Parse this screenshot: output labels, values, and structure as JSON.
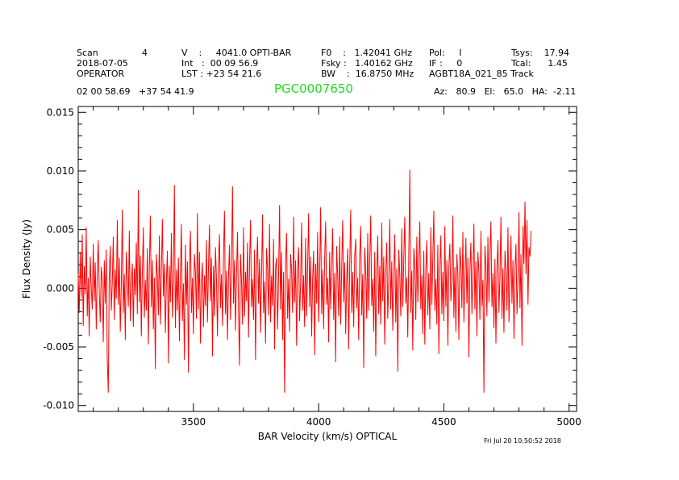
{
  "header": {
    "col1": {
      "scan_label": "Scan",
      "scan_value": "4",
      "date": "2018-07-05",
      "operator": "OPERATOR"
    },
    "col2": {
      "v": "V    :     4041.0 OPTI-BAR",
      "int": "Int   :  00 09 56.9",
      "lst": "LST : +23 54 21.6"
    },
    "col3": {
      "f0": "F0    :   1.42041 GHz",
      "fsky": "Fsky :   1.40162 GHz",
      "bw": "BW    :  16.8750 MHz"
    },
    "col4": {
      "pol": "Pol:     I",
      "if": "IF :     0",
      "proj": "AGBT18A_021_85 Track"
    },
    "col5": {
      "tsys": "Tsys:    17.94",
      "tcal": "Tcal:      1.45"
    },
    "coords": "02 00 58.69   +37 54 41.9",
    "azel": "Az:   80.9   El:   65.0   HA:  -2.11"
  },
  "title": "PGC0007650",
  "timestamp": "Fri Jul 20 10:50:52 2018",
  "colors": {
    "trace": "#ff0000",
    "title": "#22dd22"
  },
  "chart_data": {
    "type": "line",
    "title": "PGC0007650",
    "xlabel": "BAR Velocity (km/s) OPTICAL",
    "ylabel": "Flux Density (Jy)",
    "xlim": [
      3040,
      5030
    ],
    "ylim": [
      -0.0105,
      0.0155
    ],
    "xticks": [
      3500,
      4000,
      4500,
      5000
    ],
    "xtick_labels": [
      "3500",
      "4000",
      "4500",
      "5000"
    ],
    "yticks": [
      -0.01,
      -0.005,
      0.0,
      0.005,
      0.01,
      0.015
    ],
    "ytick_labels": [
      "-0.010",
      "-0.005",
      "0.000",
      "0.005",
      "0.010",
      "0.015"
    ],
    "grid": false,
    "series": [
      {
        "x_start": 3040,
        "x_step": 4,
        "y": [
          0.0012,
          -0.0021,
          0.0031,
          -0.0008,
          0.0046,
          -0.0032,
          0.0019,
          -0.0005,
          0.0052,
          -0.0024,
          0.0009,
          -0.0041,
          0.0027,
          0.0001,
          -0.0018,
          0.0038,
          -0.0011,
          0.0022,
          -0.0035,
          0.0014,
          0.0041,
          -0.0003,
          -0.0029,
          0.0018,
          0.0007,
          -0.0046,
          0.0024,
          -0.0013,
          0.0033,
          -0.0062,
          -0.0089,
          0.0011,
          0.0036,
          -0.0019,
          0.0005,
          0.0044,
          -0.0027,
          0.0016,
          -0.0009,
          0.0058,
          -0.0014,
          0.0026,
          -0.0037,
          0.0003,
          0.0067,
          -0.0021,
          0.0012,
          -0.0044,
          0.0031,
          0.0008,
          -0.0016,
          0.0049,
          -0.0028,
          0.0005,
          0.0021,
          -0.0033,
          0.0017,
          -0.0006,
          0.0039,
          -0.0022,
          0.0084,
          -0.0012,
          0.0028,
          -0.0041,
          0.0013,
          0.0052,
          -0.0025,
          0.0007,
          -0.0019,
          0.0034,
          -0.0048,
          0.0018,
          0.0062,
          -0.0016,
          0.0024,
          -0.0035,
          0.0009,
          -0.0069,
          0.0029,
          0.0011,
          -0.0023,
          0.0045,
          -0.0031,
          0.0015,
          0.0059,
          -0.0007,
          0.0021,
          -0.0038,
          0.0006,
          0.0032,
          -0.0064,
          0.0019,
          -0.0012,
          0.0047,
          -0.0025,
          0.0008,
          0.0088,
          -0.0034,
          0.0016,
          -0.0019,
          0.0026,
          -0.0045,
          0.0012,
          0.0055,
          -0.0028,
          0.0004,
          -0.0061,
          0.0037,
          -0.0014,
          0.0023,
          -0.0072,
          0.0018,
          0.0049,
          -0.0021,
          0.0009,
          -0.0039,
          0.0029,
          0.0014,
          -0.0026,
          0.0064,
          -0.0018,
          0.0031,
          -0.0047,
          0.0006,
          0.0022,
          -0.0033,
          0.0011,
          -0.0015,
          0.0041,
          -0.0029,
          0.0017,
          0.0054,
          -0.0011,
          0.0026,
          -0.0058,
          0.0019,
          -0.0024,
          0.0035,
          0.0008,
          -0.0041,
          0.0023,
          0.0046,
          -0.0017,
          0.0012,
          -0.0032,
          0.0028,
          0.0066,
          -0.0022,
          0.0015,
          -0.0044,
          0.0009,
          0.0037,
          -0.0027,
          0.0019,
          0.0087,
          -0.0013,
          0.0024,
          -0.0036,
          0.0011,
          0.0048,
          -0.0019,
          -0.0066,
          0.0029,
          0.0007,
          -0.0031,
          0.0052,
          -0.0024,
          0.0014,
          -0.0011,
          0.0039,
          -0.0042,
          0.0021,
          0.0058,
          -0.0016,
          0.0008,
          -0.0027,
          0.0033,
          -0.0061,
          0.0017,
          0.0044,
          -0.0013,
          0.0025,
          -0.0038,
          0.0012,
          0.0063,
          -0.0021,
          0.0006,
          -0.0047,
          0.0034,
          0.0016,
          -0.0023,
          0.0055,
          -0.0029,
          0.0011,
          -0.0015,
          0.0042,
          -0.0052,
          0.0018,
          0.0026,
          -0.0035,
          0.0009,
          0.0071,
          -0.0018,
          0.0031,
          -0.0044,
          0.0014,
          -0.0089,
          0.0022,
          0.0047,
          -0.0026,
          0.0008,
          -0.0037,
          0.0029,
          0.0015,
          -0.0021,
          0.0061,
          -0.0012,
          0.0024,
          -0.0049,
          0.0017,
          0.0035,
          -0.0028,
          0.0005,
          0.0056,
          -0.0019,
          0.0011,
          -0.0033,
          0.0043,
          -0.0024,
          0.0019,
          0.0064,
          -0.0016,
          0.0027,
          -0.0041,
          0.0008,
          0.0032,
          -0.0057,
          0.0021,
          -0.0013,
          0.0048,
          -0.0029,
          0.0012,
          0.0069,
          -0.0022,
          0.0016,
          -0.0035,
          0.0025,
          0.0057,
          -0.0014,
          0.0009,
          -0.0046,
          0.0031,
          -0.0018,
          0.0019,
          0.0051,
          -0.0027,
          0.0013,
          -0.0063,
          0.0036,
          0.0011,
          -0.0024,
          0.0044,
          -0.0031,
          0.0017,
          0.0058,
          -0.0012,
          0.0022,
          -0.0039,
          0.0006,
          0.0034,
          -0.0052,
          0.0018,
          0.0067,
          -0.0021,
          0.0014,
          -0.0033,
          0.0027,
          0.0042,
          -0.0017,
          0.0009,
          -0.0044,
          0.0029,
          0.0053,
          -0.0023,
          0.0012,
          -0.0068,
          0.0035,
          0.0016,
          -0.0026,
          0.0047,
          -0.0019,
          0.0024,
          0.0062,
          -0.0015,
          0.0008,
          -0.0037,
          0.0031,
          -0.0058,
          0.0013,
          0.0045,
          -0.0022,
          0.0019,
          -0.0031,
          0.0056,
          -0.0011,
          0.0027,
          -0.0048,
          0.0014,
          0.0039,
          -0.0026,
          0.0007,
          0.0059,
          -0.0018,
          0.0023,
          -0.0036,
          0.0011,
          0.0046,
          -0.0029,
          0.0017,
          -0.0071,
          0.0033,
          0.0012,
          -0.0024,
          0.0051,
          -0.0016,
          0.0025,
          0.0061,
          -0.0013,
          0.0009,
          -0.0042,
          0.0028,
          0.0101,
          -0.0021,
          0.0015,
          -0.0053,
          0.0034,
          0.0019,
          -0.0027,
          0.0044,
          -0.0012,
          0.0023,
          0.0057,
          -0.0018,
          0.0011,
          -0.0039,
          0.0032,
          -0.0048,
          0.0016,
          0.0041,
          -0.0023,
          0.0013,
          -0.0035,
          0.0052,
          -0.0014,
          0.0026,
          0.0066,
          -0.0019,
          0.0008,
          -0.0031,
          0.0037,
          -0.0056,
          0.0017,
          0.0045,
          -0.0022,
          0.0014,
          -0.0028,
          0.0053,
          -0.0016,
          0.0024,
          -0.0049,
          0.0019,
          0.0038,
          -0.0011,
          0.0006,
          0.0062,
          -0.0025,
          0.0018,
          -0.0037,
          0.0029,
          0.0012,
          -0.0044,
          0.0035,
          0.0021,
          -0.0017,
          0.0048,
          -0.0029,
          0.0009,
          0.0043,
          -0.0013,
          0.0026,
          -0.0059,
          0.0015,
          0.0039,
          -0.0022,
          0.0011,
          0.0055,
          -0.0018,
          0.0023,
          -0.0041,
          0.0031,
          0.0014,
          -0.0027,
          0.0049,
          -0.0015,
          0.0007,
          -0.0089,
          0.0036,
          0.0019,
          -0.0024,
          0.0044,
          -0.0012,
          0.0028,
          0.0057,
          -0.0016,
          0.0013,
          -0.0034,
          0.0025,
          -0.0047,
          0.0018,
          0.0041,
          -0.0021,
          0.0009,
          0.0061,
          -0.0026,
          0.0017,
          -0.0038,
          0.0032,
          0.0015,
          -0.0019,
          0.0052,
          -0.0029,
          0.0011,
          0.0045,
          -0.0013,
          0.0024,
          -0.0043,
          0.0016,
          0.0038,
          -0.0022,
          0.0008,
          0.0065,
          -0.0017,
          0.0029,
          -0.0049,
          0.0053,
          0.0021,
          0.0074,
          0.0012,
          0.0058,
          -0.0014,
          0.0035,
          0.0027,
          0.0049
        ]
      }
    ]
  }
}
